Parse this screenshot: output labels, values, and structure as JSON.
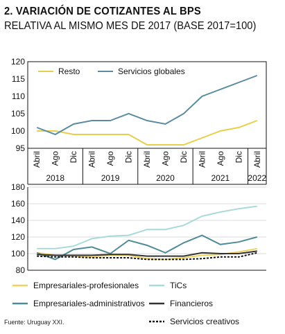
{
  "header": {
    "title": "2. VARIACIÓN DE COTIZANTES AL BPS",
    "subtitle": "RELATIVA AL MISMO MES DE 2017 (BASE 2017=100)"
  },
  "source": "Fuente: Uruguay XXI.",
  "colors": {
    "resto": "#e6cf4a",
    "servicios_globales": "#5a8ba0",
    "empresariales_profesionales": "#eed25c",
    "tics": "#a9dada",
    "empresariales_administrativos": "#4f8b96",
    "financieros": "#333333",
    "servicios_creativos": "#111111"
  },
  "chart_data": [
    {
      "type": "line",
      "x": [
        "Abril 2018",
        "Ago 2018",
        "Dic 2018",
        "Abril 2019",
        "Ago 2019",
        "Dic 2019",
        "Abril 2020",
        "Ago 2020",
        "Dic 2020",
        "Abril 2021",
        "Ago 2021",
        "Dic 2021",
        "Abril 2022"
      ],
      "tick_labels": [
        "Abril",
        "Ago",
        "Dic",
        "Abril",
        "Ago",
        "Dic",
        "Abril",
        "Ago",
        "Dic",
        "Abril",
        "Ago",
        "Dic",
        "Abril"
      ],
      "year_labels": [
        "2018",
        "2019",
        "2020",
        "2021",
        "2022"
      ],
      "series": [
        {
          "name": "Resto",
          "values": [
            100,
            100,
            99,
            99,
            99,
            99,
            96,
            96,
            96,
            98,
            100,
            101,
            103
          ]
        },
        {
          "name": "Servicios globales",
          "values": [
            101,
            99,
            102,
            103,
            103,
            105,
            103,
            102,
            105,
            110,
            112,
            114,
            116
          ]
        }
      ],
      "yticks": [
        95,
        100,
        105,
        110,
        115,
        120
      ],
      "ylim": [
        95,
        120
      ],
      "legend": "top-left",
      "grid": false
    },
    {
      "type": "line",
      "x": [
        "Abril 2018",
        "Ago 2018",
        "Dic 2018",
        "Abril 2019",
        "Ago 2019",
        "Dic 2019",
        "Abril 2020",
        "Ago 2020",
        "Dic 2020",
        "Abril 2021",
        "Ago 2021",
        "Dic 2021",
        "Abril 2022"
      ],
      "series": [
        {
          "name": "Empresariales-profesionales",
          "values": [
            101,
            98,
            97,
            96,
            98,
            98,
            94,
            93,
            95,
            98,
            99,
            102,
            106
          ]
        },
        {
          "name": "TiCs",
          "values": [
            106,
            106,
            109,
            118,
            121,
            122,
            129,
            129,
            134,
            145,
            150,
            154,
            157
          ]
        },
        {
          "name": "Empresariales-administrativos",
          "values": [
            101,
            93,
            105,
            108,
            100,
            116,
            110,
            101,
            113,
            122,
            111,
            114,
            120
          ]
        },
        {
          "name": "Financieros",
          "values": [
            99,
            98,
            98,
            98,
            99,
            99,
            97,
            97,
            97,
            101,
            100,
            100,
            103
          ]
        },
        {
          "name": "Servicios creativos",
          "values": [
            97,
            96,
            96,
            95,
            95,
            95,
            93,
            93,
            93,
            94,
            96,
            96,
            101
          ]
        }
      ],
      "yticks": [
        80,
        100,
        120,
        140,
        160,
        180
      ],
      "ylim": [
        80,
        180
      ],
      "legend": "bottom",
      "grid": true
    }
  ]
}
